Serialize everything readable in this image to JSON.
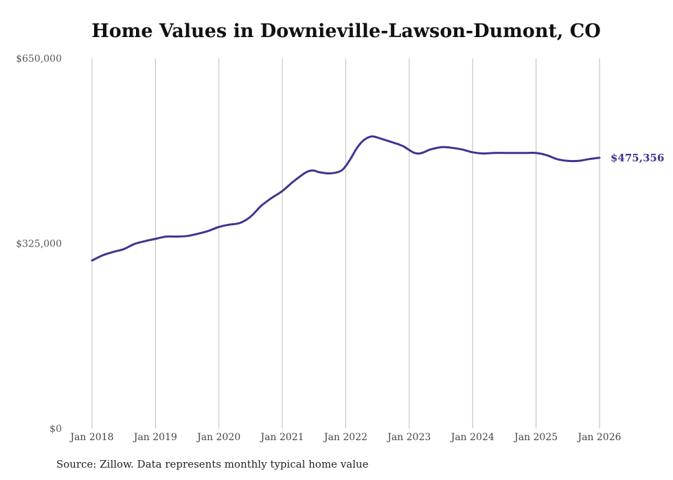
{
  "chart_data": {
    "type": "line",
    "title": "Home Values in Downieville-Lawson-Dumont, CO",
    "source": "Source: Zillow. Data represents monthly typical home value",
    "y_ticks": [
      {
        "value": 650000,
        "label": "$650,000"
      },
      {
        "value": 325000,
        "label": "$325,000"
      },
      {
        "value": 0,
        "label": "$0"
      }
    ],
    "ylim": [
      0,
      650000
    ],
    "x_ticks": [
      {
        "year": 2018,
        "label": "Jan 2018"
      },
      {
        "year": 2019,
        "label": "Jan 2019"
      },
      {
        "year": 2020,
        "label": "Jan 2020"
      },
      {
        "year": 2021,
        "label": "Jan 2021"
      },
      {
        "year": 2022,
        "label": "Jan 2022"
      },
      {
        "year": 2023,
        "label": "Jan 2023"
      },
      {
        "year": 2024,
        "label": "Jan 2024"
      },
      {
        "year": 2025,
        "label": "Jan 2025"
      },
      {
        "year": 2026,
        "label": "Jan 2026"
      }
    ],
    "xlim": [
      2018,
      2026
    ],
    "grid": true,
    "line_color": "#3d3590",
    "series": [
      {
        "name": "Typical home value",
        "x": [
          2018.0,
          2018.1667,
          2018.3333,
          2018.5,
          2018.6667,
          2018.8333,
          2019.0,
          2019.1667,
          2019.3333,
          2019.5,
          2019.6667,
          2019.8333,
          2020.0,
          2020.1667,
          2020.3333,
          2020.5,
          2020.6667,
          2020.8333,
          2021.0,
          2021.1667,
          2021.3333,
          2021.4167,
          2021.5,
          2021.5833,
          2021.75,
          2021.9167,
          2022.0,
          2022.0833,
          2022.1667,
          2022.25,
          2022.3333,
          2022.4167,
          2022.5,
          2022.5833,
          2022.6667,
          2022.75,
          2022.8333,
          2022.9167,
          2023.0,
          2023.0833,
          2023.1667,
          2023.25,
          2023.3333,
          2023.5,
          2023.5833,
          2023.6667,
          2023.8333,
          2024.0,
          2024.1667,
          2024.3333,
          2024.5,
          2024.6667,
          2024.8333,
          2025.0,
          2025.1667,
          2025.3333,
          2025.5,
          2025.6667,
          2025.8333,
          2026.0
        ],
        "y": [
          295000,
          304000,
          310000,
          315000,
          324000,
          329000,
          333000,
          337000,
          337000,
          338000,
          342000,
          347000,
          354000,
          358000,
          361000,
          372000,
          391000,
          405000,
          417000,
          433000,
          447000,
          452000,
          453000,
          450000,
          448000,
          452000,
          461000,
          475000,
          491000,
          503000,
          510000,
          513000,
          511000,
          508000,
          505000,
          502000,
          499000,
          495000,
          489000,
          484000,
          483000,
          486000,
          490000,
          494000,
          494000,
          493000,
          490000,
          485000,
          483000,
          484000,
          484000,
          484000,
          484000,
          484000,
          480000,
          473000,
          470000,
          470000,
          473000,
          475356
        ]
      }
    ],
    "end_label": "$475,356"
  }
}
